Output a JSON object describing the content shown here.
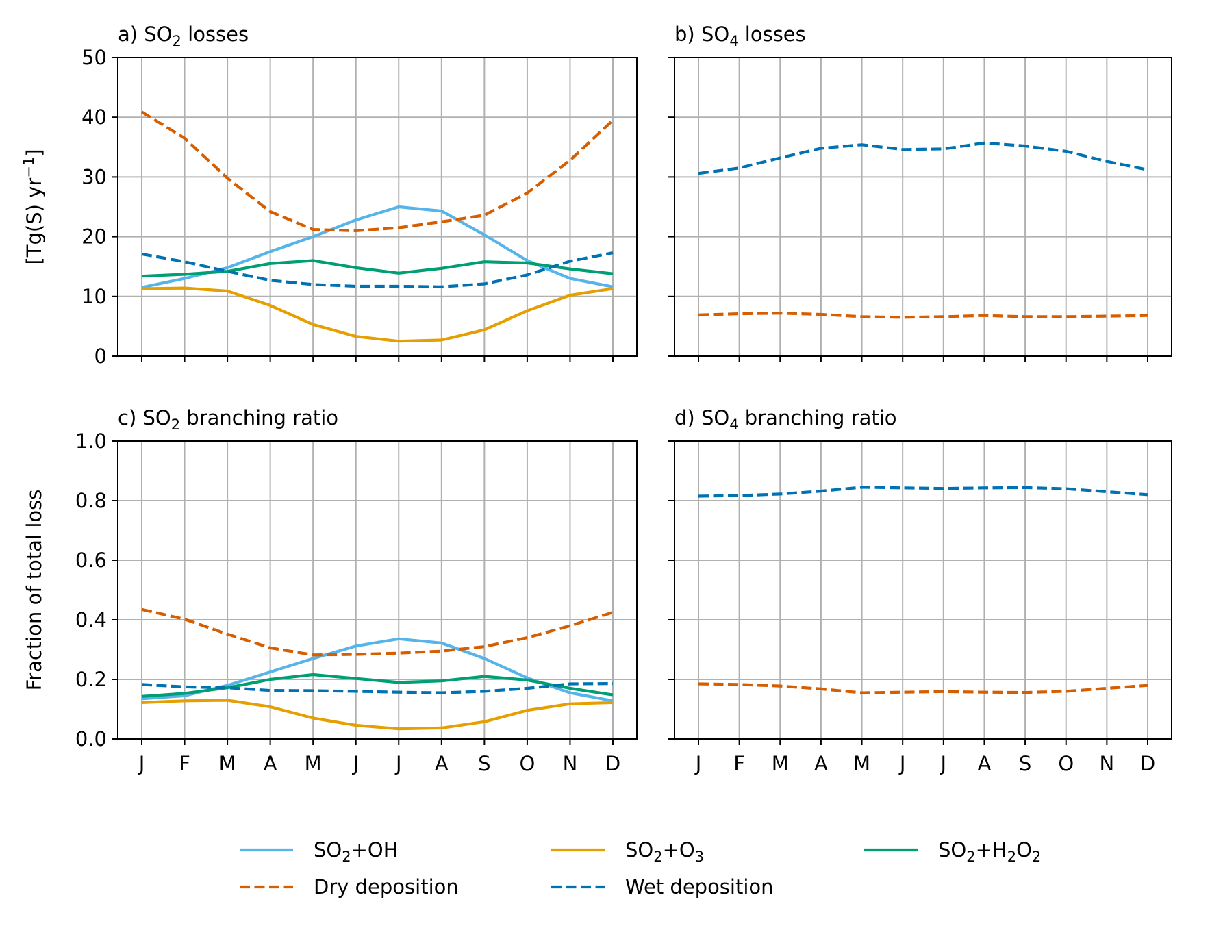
{
  "colors": {
    "so2_oh": "#56B4E9",
    "so2_o3": "#E69F00",
    "so2_h2o2": "#009E73",
    "dry": "#D55E00",
    "wet": "#0072B2",
    "grid": "#b0b0b0"
  },
  "legend": [
    {
      "key": "so2_oh",
      "base": "SO",
      "sub": "2",
      "rest": "+OH",
      "style": "solid"
    },
    {
      "key": "so2_o3",
      "base": "SO",
      "sub": "2",
      "rest": "+O",
      "sub2": "3",
      "style": "solid"
    },
    {
      "key": "so2_h2o2",
      "base": "SO",
      "sub": "2",
      "rest": "+H",
      "sub2": "2",
      "rest2": "O",
      "sub3": "2",
      "style": "solid"
    },
    {
      "key": "dry",
      "base": "Dry deposition",
      "style": "dashed"
    },
    {
      "key": "wet",
      "base": "Wet deposition",
      "style": "dashed"
    }
  ],
  "chart_data": [
    {
      "type": "line",
      "panel": "a",
      "title": {
        "pre": "a) SO",
        "sub": "2",
        "post": " losses"
      },
      "ylabel": {
        "pre": "[Tg(S) yr",
        "sup": "−1",
        "post": "]"
      },
      "categories": [
        "J",
        "F",
        "M",
        "A",
        "M",
        "J",
        "J",
        "A",
        "S",
        "O",
        "N",
        "D"
      ],
      "show_xticklabels": false,
      "show_yticklabels": true,
      "yticks": [
        "0",
        "10",
        "20",
        "30",
        "40",
        "50"
      ],
      "ylim": [
        0,
        50
      ],
      "grid": true,
      "series": [
        {
          "key": "so2_oh",
          "values": [
            11.5,
            13.0,
            14.8,
            17.5,
            20.0,
            22.8,
            25.0,
            24.3,
            20.3,
            16.0,
            13.0,
            11.6
          ],
          "style": "solid"
        },
        {
          "key": "so2_o3",
          "values": [
            11.3,
            11.4,
            10.9,
            8.5,
            5.3,
            3.3,
            2.5,
            2.7,
            4.4,
            7.6,
            10.2,
            11.3
          ],
          "style": "solid"
        },
        {
          "key": "so2_h2o2",
          "values": [
            13.4,
            13.7,
            14.2,
            15.5,
            16.0,
            14.8,
            13.9,
            14.7,
            15.8,
            15.6,
            14.6,
            13.8
          ],
          "style": "solid"
        },
        {
          "key": "dry",
          "values": [
            40.9,
            36.5,
            29.8,
            24.2,
            21.2,
            21.0,
            21.5,
            22.5,
            23.6,
            27.3,
            32.8,
            39.5
          ],
          "style": "dashed"
        },
        {
          "key": "wet",
          "values": [
            17.1,
            15.8,
            14.2,
            12.7,
            12.0,
            11.7,
            11.7,
            11.6,
            12.1,
            13.6,
            15.9,
            17.3
          ],
          "style": "dashed"
        }
      ]
    },
    {
      "type": "line",
      "panel": "b",
      "title": {
        "pre": "b) SO",
        "sub": "4",
        "post": " losses"
      },
      "categories": [
        "J",
        "F",
        "M",
        "A",
        "M",
        "J",
        "J",
        "A",
        "S",
        "O",
        "N",
        "D"
      ],
      "show_xticklabels": false,
      "show_yticklabels": false,
      "yticks": [
        "0",
        "10",
        "20",
        "30",
        "40",
        "50"
      ],
      "ylim": [
        0,
        50
      ],
      "grid": true,
      "series": [
        {
          "key": "wet",
          "values": [
            30.6,
            31.5,
            33.2,
            34.8,
            35.4,
            34.6,
            34.7,
            35.7,
            35.2,
            34.3,
            32.6,
            31.2
          ],
          "style": "dashed"
        },
        {
          "key": "dry",
          "values": [
            6.9,
            7.1,
            7.2,
            7.0,
            6.6,
            6.5,
            6.6,
            6.8,
            6.6,
            6.6,
            6.7,
            6.8
          ],
          "style": "dashed"
        }
      ]
    },
    {
      "type": "line",
      "panel": "c",
      "title": {
        "pre": "c) SO",
        "sub": "2",
        "post": " branching ratio"
      },
      "ylabel": {
        "pre": "Fraction of total loss"
      },
      "categories": [
        "J",
        "F",
        "M",
        "A",
        "M",
        "J",
        "J",
        "A",
        "S",
        "O",
        "N",
        "D"
      ],
      "show_xticklabels": true,
      "show_yticklabels": true,
      "yticks": [
        "0.0",
        "0.2",
        "0.4",
        "0.6",
        "0.8",
        "1.0"
      ],
      "ylim": [
        0,
        1
      ],
      "grid": true,
      "series": [
        {
          "key": "so2_oh",
          "values": [
            0.135,
            0.145,
            0.18,
            0.225,
            0.27,
            0.312,
            0.336,
            0.322,
            0.27,
            0.205,
            0.155,
            0.128
          ],
          "style": "solid"
        },
        {
          "key": "so2_o3",
          "values": [
            0.122,
            0.128,
            0.13,
            0.108,
            0.07,
            0.046,
            0.034,
            0.037,
            0.058,
            0.096,
            0.118,
            0.122
          ],
          "style": "solid"
        },
        {
          "key": "so2_h2o2",
          "values": [
            0.143,
            0.153,
            0.172,
            0.2,
            0.216,
            0.203,
            0.19,
            0.195,
            0.21,
            0.198,
            0.17,
            0.148
          ],
          "style": "solid"
        },
        {
          "key": "dry",
          "values": [
            0.435,
            0.402,
            0.352,
            0.306,
            0.282,
            0.284,
            0.288,
            0.295,
            0.31,
            0.34,
            0.38,
            0.425
          ],
          "style": "dashed"
        },
        {
          "key": "wet",
          "values": [
            0.183,
            0.175,
            0.172,
            0.163,
            0.162,
            0.16,
            0.157,
            0.155,
            0.16,
            0.17,
            0.185,
            0.186
          ],
          "style": "dashed"
        }
      ]
    },
    {
      "type": "line",
      "panel": "d",
      "title": {
        "pre": "d) SO",
        "sub": "4",
        "post": " branching ratio"
      },
      "categories": [
        "J",
        "F",
        "M",
        "A",
        "M",
        "J",
        "J",
        "A",
        "S",
        "O",
        "N",
        "D"
      ],
      "show_xticklabels": true,
      "show_yticklabels": false,
      "yticks": [
        "0.0",
        "0.2",
        "0.4",
        "0.6",
        "0.8",
        "1.0"
      ],
      "ylim": [
        0,
        1
      ],
      "grid": true,
      "series": [
        {
          "key": "wet",
          "values": [
            0.815,
            0.817,
            0.822,
            0.832,
            0.845,
            0.843,
            0.841,
            0.843,
            0.844,
            0.84,
            0.83,
            0.82
          ],
          "style": "dashed"
        },
        {
          "key": "dry",
          "values": [
            0.185,
            0.183,
            0.178,
            0.168,
            0.155,
            0.157,
            0.159,
            0.157,
            0.156,
            0.16,
            0.17,
            0.18
          ],
          "style": "dashed"
        }
      ]
    }
  ]
}
